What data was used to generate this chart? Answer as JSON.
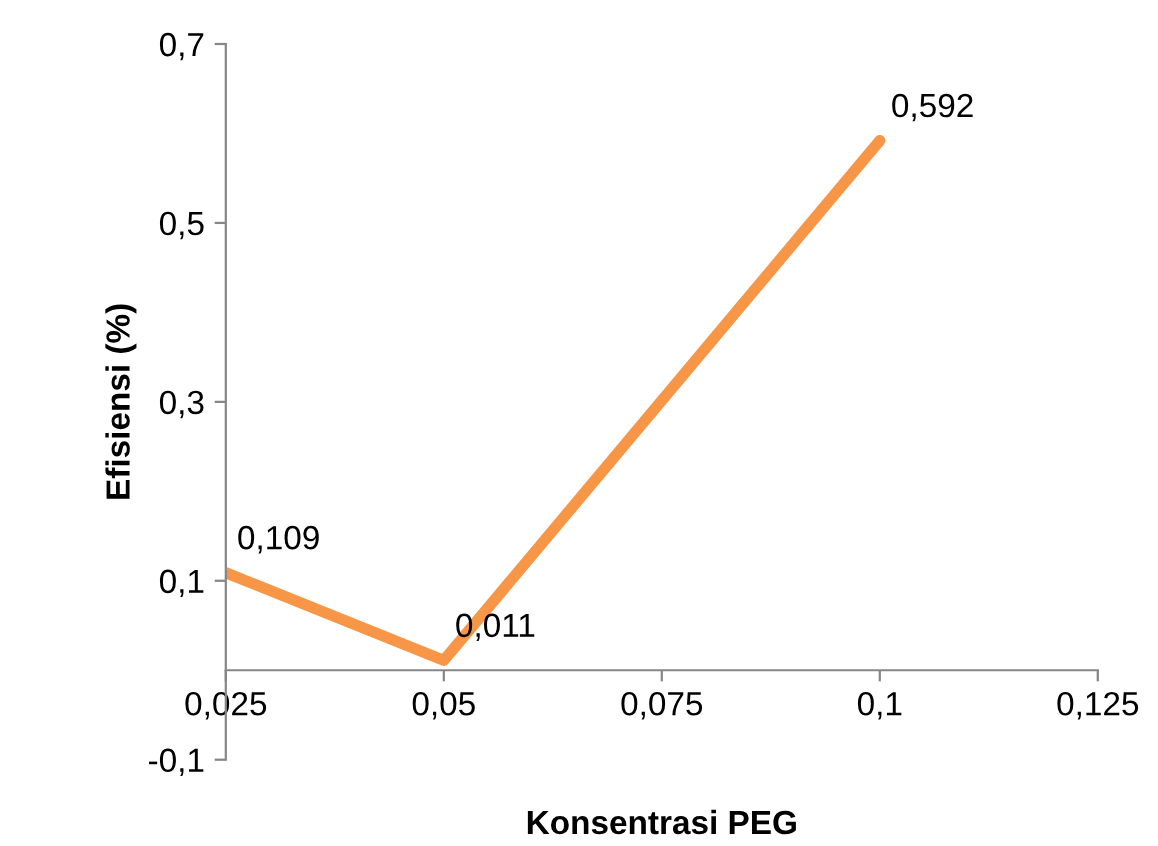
{
  "chart_data": {
    "type": "line",
    "xlabel": "Konsentrasi PEG",
    "ylabel": "Efisiensi (%)",
    "x": [
      0.025,
      0.05,
      0.1
    ],
    "series": [
      {
        "color": "#f79646",
        "values": [
          0.109,
          0.011,
          0.592
        ],
        "value_labels": [
          "0,109",
          "0,011",
          "0,592"
        ]
      }
    ],
    "xlim": [
      0.025,
      0.125
    ],
    "xticks": [
      {
        "value": 0.025,
        "label": "0,025"
      },
      {
        "value": 0.05,
        "label": "0,05"
      },
      {
        "value": 0.075,
        "label": "0,075"
      },
      {
        "value": 0.1,
        "label": "0,1"
      },
      {
        "value": 0.125,
        "label": "0,125"
      }
    ],
    "ylim": [
      -0.1,
      0.7
    ],
    "yticks": [
      {
        "value": -0.1,
        "label": "-0,1"
      },
      {
        "value": 0.1,
        "label": "0,1"
      },
      {
        "value": 0.3,
        "label": "0,3"
      },
      {
        "value": 0.5,
        "label": "0,5"
      },
      {
        "value": 0.7,
        "label": "0,7"
      }
    ],
    "grid": false,
    "marker": "none",
    "line_style": "solid"
  }
}
